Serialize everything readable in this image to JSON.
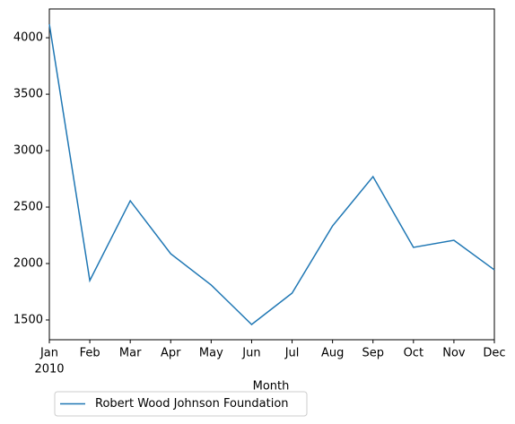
{
  "chart_data": {
    "type": "line",
    "xlabel": "Month",
    "year_label": "2010",
    "categories": [
      "Jan",
      "Feb",
      "Mar",
      "Apr",
      "May",
      "Jun",
      "Jul",
      "Aug",
      "Sep",
      "Oct",
      "Nov",
      "Dec"
    ],
    "series": [
      {
        "name": "Robert Wood Johnson Foundation",
        "color": "#1f77b4",
        "values": [
          4120,
          1849,
          2556,
          2087,
          1810,
          1460,
          1738,
          2333,
          2770,
          2143,
          2206,
          1944
        ]
      }
    ],
    "ylim": [
      1325,
      4255
    ],
    "yticks": [
      1500,
      2000,
      2500,
      3000,
      3500,
      4000
    ],
    "legend": "lower left"
  }
}
